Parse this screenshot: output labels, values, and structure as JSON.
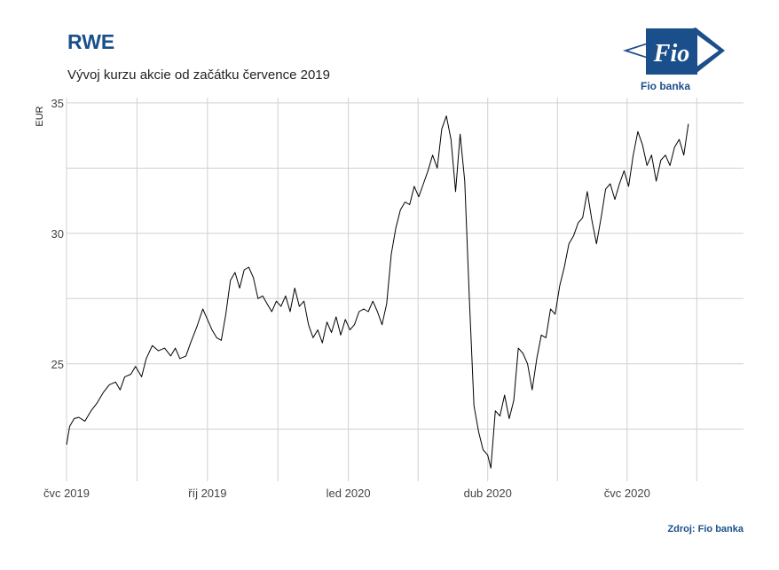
{
  "header": {
    "title": "RWE",
    "subtitle": "Vývoj kurzu akcie od začátku července 2019"
  },
  "logo": {
    "mark_text": "Fio",
    "caption": "Fio banka"
  },
  "footer": {
    "source": "Zdroj: Fio banka"
  },
  "colors": {
    "brand": "#1a4f8b",
    "line": "#000000",
    "grid": "#d0d0d0"
  },
  "chart_data": {
    "type": "line",
    "ylabel": "EUR",
    "xlabel": "",
    "ylim": [
      20.5,
      35.2
    ],
    "yticks": [
      25,
      30,
      35
    ],
    "grid": true,
    "x_start": "2019-07-01",
    "x_end": "2020-09-15",
    "xticks": [
      {
        "date": "2019-07-01",
        "label": "čvc 2019"
      },
      {
        "date": "2019-10-01",
        "label": "říj 2019"
      },
      {
        "date": "2020-01-01",
        "label": "led 2020"
      },
      {
        "date": "2020-04-01",
        "label": "dub 2020"
      },
      {
        "date": "2020-07-01",
        "label": "čvc 2020"
      }
    ],
    "series": [
      {
        "name": "",
        "points": [
          [
            "2019-07-01",
            21.9
          ],
          [
            "2019-07-03",
            22.6
          ],
          [
            "2019-07-06",
            22.9
          ],
          [
            "2019-07-09",
            22.95
          ],
          [
            "2019-07-13",
            22.8
          ],
          [
            "2019-07-17",
            23.2
          ],
          [
            "2019-07-21",
            23.5
          ],
          [
            "2019-07-25",
            23.9
          ],
          [
            "2019-07-29",
            24.2
          ],
          [
            "2019-08-02",
            24.3
          ],
          [
            "2019-08-05",
            24.0
          ],
          [
            "2019-08-08",
            24.5
          ],
          [
            "2019-08-12",
            24.6
          ],
          [
            "2019-08-15",
            24.9
          ],
          [
            "2019-08-19",
            24.5
          ],
          [
            "2019-08-22",
            25.2
          ],
          [
            "2019-08-26",
            25.7
          ],
          [
            "2019-08-30",
            25.5
          ],
          [
            "2019-09-03",
            25.6
          ],
          [
            "2019-09-07",
            25.3
          ],
          [
            "2019-09-10",
            25.6
          ],
          [
            "2019-09-13",
            25.2
          ],
          [
            "2019-09-17",
            25.3
          ],
          [
            "2019-09-20",
            25.8
          ],
          [
            "2019-09-24",
            26.4
          ],
          [
            "2019-09-28",
            27.1
          ],
          [
            "2019-10-01",
            26.7
          ],
          [
            "2019-10-04",
            26.3
          ],
          [
            "2019-10-07",
            26.0
          ],
          [
            "2019-10-10",
            25.9
          ],
          [
            "2019-10-13",
            26.9
          ],
          [
            "2019-10-16",
            28.2
          ],
          [
            "2019-10-19",
            28.5
          ],
          [
            "2019-10-22",
            27.9
          ],
          [
            "2019-10-25",
            28.6
          ],
          [
            "2019-10-28",
            28.7
          ],
          [
            "2019-10-31",
            28.3
          ],
          [
            "2019-11-03",
            27.5
          ],
          [
            "2019-11-06",
            27.6
          ],
          [
            "2019-11-09",
            27.3
          ],
          [
            "2019-11-12",
            27.0
          ],
          [
            "2019-11-15",
            27.4
          ],
          [
            "2019-11-18",
            27.2
          ],
          [
            "2019-11-21",
            27.6
          ],
          [
            "2019-11-24",
            27.0
          ],
          [
            "2019-11-27",
            27.9
          ],
          [
            "2019-11-30",
            27.2
          ],
          [
            "2019-12-03",
            27.4
          ],
          [
            "2019-12-06",
            26.5
          ],
          [
            "2019-12-09",
            26.0
          ],
          [
            "2019-12-12",
            26.3
          ],
          [
            "2019-12-15",
            25.8
          ],
          [
            "2019-12-18",
            26.6
          ],
          [
            "2019-12-21",
            26.2
          ],
          [
            "2019-12-24",
            26.8
          ],
          [
            "2019-12-27",
            26.1
          ],
          [
            "2019-12-30",
            26.7
          ],
          [
            "2020-01-02",
            26.3
          ],
          [
            "2020-01-05",
            26.5
          ],
          [
            "2020-01-08",
            27.0
          ],
          [
            "2020-01-11",
            27.1
          ],
          [
            "2020-01-14",
            27.0
          ],
          [
            "2020-01-17",
            27.4
          ],
          [
            "2020-01-20",
            27.0
          ],
          [
            "2020-01-23",
            26.5
          ],
          [
            "2020-01-26",
            27.3
          ],
          [
            "2020-01-29",
            29.2
          ],
          [
            "2020-02-01",
            30.2
          ],
          [
            "2020-02-04",
            30.9
          ],
          [
            "2020-02-07",
            31.2
          ],
          [
            "2020-02-10",
            31.1
          ],
          [
            "2020-02-13",
            31.8
          ],
          [
            "2020-02-16",
            31.4
          ],
          [
            "2020-02-19",
            31.9
          ],
          [
            "2020-02-22",
            32.4
          ],
          [
            "2020-02-25",
            33.0
          ],
          [
            "2020-02-28",
            32.5
          ],
          [
            "2020-03-02",
            34.0
          ],
          [
            "2020-03-05",
            34.5
          ],
          [
            "2020-03-08",
            33.6
          ],
          [
            "2020-03-11",
            31.6
          ],
          [
            "2020-03-14",
            33.8
          ],
          [
            "2020-03-17",
            32.0
          ],
          [
            "2020-03-20",
            27.5
          ],
          [
            "2020-03-23",
            23.4
          ],
          [
            "2020-03-26",
            22.4
          ],
          [
            "2020-03-29",
            21.7
          ],
          [
            "2020-04-01",
            21.5
          ],
          [
            "2020-04-03",
            21.0
          ],
          [
            "2020-04-06",
            23.2
          ],
          [
            "2020-04-09",
            23.0
          ],
          [
            "2020-04-12",
            23.8
          ],
          [
            "2020-04-15",
            22.9
          ],
          [
            "2020-04-18",
            23.6
          ],
          [
            "2020-04-21",
            25.6
          ],
          [
            "2020-04-24",
            25.4
          ],
          [
            "2020-04-27",
            25.0
          ],
          [
            "2020-04-30",
            24.0
          ],
          [
            "2020-05-03",
            25.2
          ],
          [
            "2020-05-06",
            26.1
          ],
          [
            "2020-05-09",
            26.0
          ],
          [
            "2020-05-12",
            27.1
          ],
          [
            "2020-05-15",
            26.9
          ],
          [
            "2020-05-18",
            28.0
          ],
          [
            "2020-05-21",
            28.7
          ],
          [
            "2020-05-24",
            29.6
          ],
          [
            "2020-05-27",
            29.9
          ],
          [
            "2020-05-30",
            30.4
          ],
          [
            "2020-06-02",
            30.6
          ],
          [
            "2020-06-05",
            31.6
          ],
          [
            "2020-06-08",
            30.5
          ],
          [
            "2020-06-11",
            29.6
          ],
          [
            "2020-06-14",
            30.6
          ],
          [
            "2020-06-17",
            31.7
          ],
          [
            "2020-06-20",
            31.9
          ],
          [
            "2020-06-23",
            31.3
          ],
          [
            "2020-06-26",
            31.9
          ],
          [
            "2020-06-29",
            32.4
          ],
          [
            "2020-07-02",
            31.8
          ],
          [
            "2020-07-05",
            33.0
          ],
          [
            "2020-07-08",
            33.9
          ],
          [
            "2020-07-11",
            33.4
          ],
          [
            "2020-07-14",
            32.6
          ],
          [
            "2020-07-17",
            33.0
          ],
          [
            "2020-07-20",
            32.0
          ],
          [
            "2020-07-23",
            32.8
          ],
          [
            "2020-07-26",
            33.0
          ],
          [
            "2020-07-29",
            32.6
          ],
          [
            "2020-08-01",
            33.3
          ],
          [
            "2020-08-04",
            33.6
          ],
          [
            "2020-08-07",
            33.0
          ],
          [
            "2020-08-10",
            34.2
          ]
        ]
      }
    ]
  }
}
